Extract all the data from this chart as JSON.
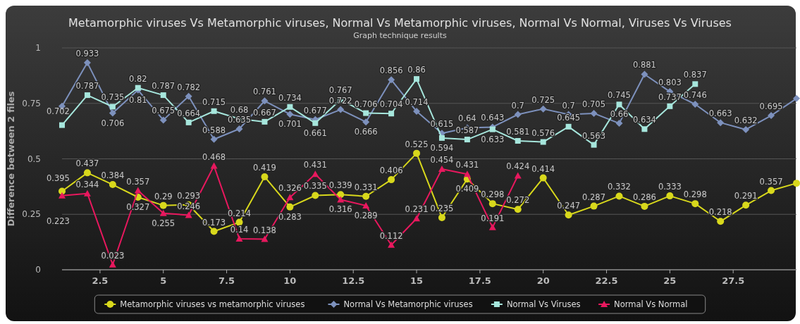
{
  "chart_data": {
    "type": "line",
    "title": "Metamorphic viruses Vs Metamorphic viruses, Normal Vs Metamorphic viruses, Normal Vs Normal, Viruses Vs Viruses",
    "subtitle": "Graph technique results",
    "ylabel": "Difference between 2 files",
    "x": [
      1,
      2,
      3,
      4,
      5,
      6,
      7,
      8,
      9,
      10,
      11,
      12,
      13,
      14,
      15,
      16,
      17,
      18,
      19,
      20,
      21,
      22,
      23,
      24,
      25,
      26,
      27,
      28,
      29,
      30
    ],
    "xlim": [
      1,
      30
    ],
    "xticks": [
      {
        "value": 2.5,
        "label": "2.5"
      },
      5,
      {
        "value": 7.5,
        "label": "7.5"
      },
      10,
      {
        "value": 12.5,
        "label": "12.5"
      },
      15,
      {
        "value": 17.5,
        "label": "17.5"
      },
      20,
      {
        "value": 22.5,
        "label": "22.5"
      },
      25,
      {
        "value": 27.5,
        "label": "27.5"
      }
    ],
    "ylim": [
      0,
      1
    ],
    "yticks": [
      0,
      0.25,
      0.5,
      0.75,
      1
    ],
    "grid": "y",
    "legend": "bottom",
    "series": [
      {
        "name": "Metamorphic viruses vs metamorphic viruses",
        "color": "#d8d81c",
        "marker": "circle",
        "values": [
          0.354,
          0.437,
          0.384,
          0.327,
          0.29,
          0.293,
          0.173,
          0.214,
          0.419,
          0.283,
          0.335,
          0.339,
          0.331,
          0.406,
          0.525,
          0.235,
          0.409,
          0.298,
          0.272,
          0.414,
          0.247,
          0.287,
          0.332,
          0.286,
          0.333,
          0.298,
          0.218,
          0.291,
          0.357,
          0.39
        ],
        "value_labels": [
          null,
          "0.437",
          "0.384",
          "0.327",
          "0.29",
          "0.293",
          "0.173",
          "0.214",
          "0.419",
          "0.283",
          "0.335",
          "0.339",
          "0.331",
          "0.406",
          "0.525",
          "0.235",
          "0.409",
          "0.298",
          "0.272",
          "0.414",
          "0.247",
          "0.287",
          "0.332",
          "0.286",
          "0.333",
          "0.298",
          "0.218",
          "0.291",
          "0.357",
          null
        ]
      },
      {
        "name": "Normal Vs Metamorphic viruses",
        "color": "#7d91bd",
        "marker": "diamond",
        "values": [
          0.737,
          0.933,
          0.706,
          0.81,
          0.675,
          0.782,
          0.588,
          0.635,
          0.761,
          0.701,
          0.677,
          0.722,
          0.666,
          0.856,
          0.714,
          0.615,
          0.64,
          0.643,
          0.7,
          0.725,
          0.7,
          0.705,
          0.66,
          0.881,
          0.803,
          0.746,
          0.663,
          0.632,
          0.695,
          0.772
        ],
        "value_labels": [
          null,
          "0.933",
          "0.706",
          "0.81",
          "0.675",
          "0.782",
          "0.588",
          "0.635",
          "0.761",
          "0.701",
          "0.677",
          "0.722",
          "0.666",
          "0.856",
          "0.714",
          "0.615",
          "0.64",
          "0.643",
          "0.7",
          "0.725",
          "0.7",
          "0.705",
          "0.66",
          "0.881",
          "0.803",
          "0.746",
          "0.663",
          "0.632",
          "0.695",
          null
        ]
      },
      {
        "name": "Normal Vs Viruses",
        "color": "#a6e6dc",
        "marker": "square",
        "values": [
          0.652,
          0.787,
          0.735,
          0.82,
          0.787,
          0.664,
          0.715,
          0.68,
          0.667,
          0.734,
          0.661,
          0.767,
          0.706,
          0.704,
          0.86,
          0.594,
          0.587,
          0.633,
          0.581,
          0.576,
          0.645,
          0.563,
          0.745,
          0.634,
          0.737,
          0.837,
          null,
          null,
          null,
          null
        ],
        "value_labels": [
          null,
          "0.787",
          "0.735",
          "0.82",
          "0.787",
          "0.664",
          "0.715",
          "0.68",
          "0.667",
          "0.734",
          "0.661",
          "0.767",
          "0.706",
          "0.704",
          "0.86",
          "0.594",
          "0.587",
          "0.633",
          "0.581",
          "0.576",
          "0.645",
          "0.563",
          "0.745",
          "0.634",
          "0.737",
          "0.837",
          null,
          null,
          null,
          null
        ]
      },
      {
        "name": "Normal Vs Normal",
        "color": "#e8185e",
        "marker": "triangle",
        "values": [
          0.334,
          0.344,
          0.023,
          0.357,
          0.255,
          0.246,
          0.468,
          0.14,
          0.138,
          0.326,
          0.431,
          0.316,
          0.289,
          0.112,
          0.231,
          0.454,
          0.431,
          0.191,
          0.424,
          null,
          null,
          null,
          null,
          null,
          null,
          null,
          null,
          null,
          null,
          null
        ],
        "value_labels": [
          null,
          "0.344",
          "0.023",
          "0.357",
          "0.255",
          "0.246",
          "0.468",
          "0.14",
          "0.138",
          "0.326",
          "0.431",
          "0.316",
          "0.289",
          "0.112",
          "0.231",
          "0.454",
          "0.431",
          "0.191",
          "0.424",
          null,
          null,
          null,
          null,
          null,
          null,
          null,
          null,
          null,
          null,
          null
        ]
      }
    ],
    "annotations": [
      "0.395",
      "0.223",
      "0.702"
    ]
  }
}
